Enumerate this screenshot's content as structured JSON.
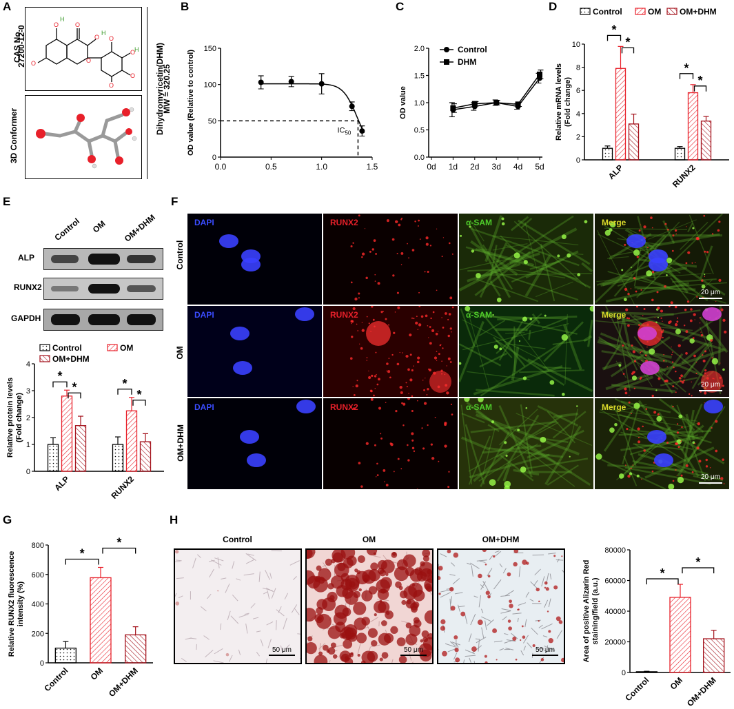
{
  "panels": {
    "A": "A",
    "B": "B",
    "C": "C",
    "D": "D",
    "E": "E",
    "F": "F",
    "G": "G",
    "H": "H"
  },
  "panel_a": {
    "cas_label": "CAS No.",
    "cas_number": "27200-12-0",
    "conformer_label": "3D Conformer",
    "compound_name": "Dihydromyricetin(DHM)",
    "mw": "MW = 320.25"
  },
  "panel_e": {
    "lanes": [
      "Control",
      "OM",
      "OM+DHM"
    ],
    "rows": [
      "ALP",
      "RUNX2",
      "GAPDH"
    ]
  },
  "panel_f": {
    "rows": [
      "Control",
      "OM",
      "OM+DHM"
    ],
    "channels": [
      "DAPI",
      "RUNX2",
      "α-SAM",
      "Merge"
    ],
    "scale": "20 μm"
  },
  "panel_h": {
    "conditions": [
      "Control",
      "OM",
      "OM+DHM"
    ],
    "scale": "50 μm"
  },
  "colors": {
    "red": "#e8202a",
    "dark_red": "#a3101a",
    "blue": "#2030e0",
    "green": "#3ec21e",
    "merge": "#c8c81e"
  },
  "chart_data": [
    {
      "id": "B",
      "type": "scatter",
      "xlabel": "",
      "ylabel": "OD value (Relative to control)",
      "xlim": [
        0.0,
        1.5
      ],
      "ylim": [
        0,
        150
      ],
      "xticks": [
        "0.0",
        "0.5",
        "1.0",
        "1.5"
      ],
      "yticks": [
        "0",
        "50",
        "100",
        "150"
      ],
      "x": [
        0.4,
        0.7,
        1.0,
        1.3,
        1.4
      ],
      "y": [
        103,
        104,
        101,
        70,
        36
      ],
      "err": [
        9,
        7,
        14,
        6,
        7
      ],
      "annotation": "IC50",
      "ic50_x": 1.36,
      "ic50_y": 50
    },
    {
      "id": "C",
      "type": "line",
      "xlabel": "",
      "ylabel": "OD value",
      "ylim": [
        0.0,
        2.0
      ],
      "categories": [
        "0d",
        "1d",
        "2d",
        "3d",
        "4d",
        "5d"
      ],
      "yticks": [
        "0.0",
        "0.5",
        "1.0",
        "1.5",
        "2.0"
      ],
      "series": [
        {
          "name": "Control",
          "values": [
            null,
            0.87,
            0.93,
            1.0,
            0.93,
            1.45
          ],
          "err": [
            null,
            0.13,
            0.07,
            0.05,
            0.05,
            0.09
          ]
        },
        {
          "name": "DHM",
          "values": [
            null,
            0.9,
            0.98,
            1.0,
            0.97,
            1.52
          ],
          "err": [
            null,
            0.08,
            0.04,
            0.04,
            0.04,
            0.08
          ]
        }
      ]
    },
    {
      "id": "D",
      "type": "bar",
      "ylabel": "Relative mRNA levels (Fold change)",
      "ylim": [
        0,
        10
      ],
      "yticks": [
        "0",
        "2",
        "4",
        "6",
        "8",
        "10"
      ],
      "categories": [
        "ALP",
        "RUNX2"
      ],
      "series": [
        {
          "name": "Control",
          "values": [
            1.0,
            1.0
          ],
          "err": [
            0.2,
            0.15
          ]
        },
        {
          "name": "OM",
          "values": [
            7.9,
            5.8
          ],
          "err": [
            1.9,
            0.7
          ]
        },
        {
          "name": "OM+DHM",
          "values": [
            3.1,
            3.35
          ],
          "err": [
            0.85,
            0.4
          ]
        }
      ],
      "sig": "*"
    },
    {
      "id": "E",
      "type": "bar",
      "ylabel": "Relative protein levels (Fold change)",
      "ylim": [
        0,
        4
      ],
      "yticks": [
        "0",
        "1",
        "2",
        "3",
        "4"
      ],
      "categories": [
        "ALP",
        "RUNX2"
      ],
      "series": [
        {
          "name": "Control",
          "values": [
            1.0,
            1.0
          ],
          "err": [
            0.25,
            0.28
          ]
        },
        {
          "name": "OM",
          "values": [
            2.8,
            2.25
          ],
          "err": [
            0.22,
            0.5
          ]
        },
        {
          "name": "OM+DHM",
          "values": [
            1.7,
            1.1
          ],
          "err": [
            0.35,
            0.3
          ]
        }
      ],
      "sig": "*"
    },
    {
      "id": "G",
      "type": "bar",
      "ylabel": "Relative RUNX2 fluorescence intensity (%)",
      "ylim": [
        0,
        800
      ],
      "yticks": [
        "0",
        "200",
        "400",
        "600",
        "800"
      ],
      "categories": [
        "Control",
        "OM",
        "OM+DHM"
      ],
      "values": [
        100,
        578,
        190
      ],
      "err": [
        45,
        70,
        55
      ],
      "sig": "*"
    },
    {
      "id": "H",
      "type": "bar",
      "ylabel": "Area of positive Alizarin Red staining/field (a.u.)",
      "ylim": [
        0,
        80000
      ],
      "yticks": [
        "0",
        "20000",
        "40000",
        "60000",
        "80000"
      ],
      "categories": [
        "Control",
        "OM",
        "OM+DHM"
      ],
      "values": [
        500,
        49000,
        22000
      ],
      "err": [
        300,
        8500,
        5500
      ],
      "sig": "*"
    }
  ]
}
